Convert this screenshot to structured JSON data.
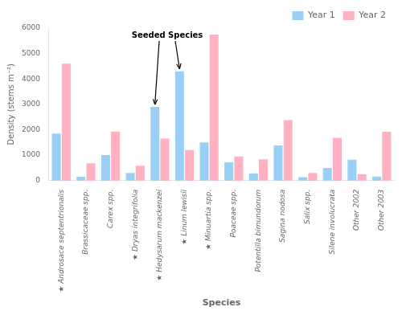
{
  "chart_data": {
    "type": "bar",
    "categories": [
      "★ Androsace septentrionalis",
      "Brassicaceae spp.",
      "Carex spp.",
      "★ Dryas integrifolia",
      "★ Hedysarum mackenzei",
      "★ Linum lewisii",
      "★ Minuartia spp.",
      "Poaceae spp.",
      "Potentilla bimundorum",
      "Sagina nodosa",
      "Salix spp.",
      "Silene involucrata",
      "Other 2002",
      "Other 2003"
    ],
    "series": [
      {
        "name": "Year 1",
        "values": [
          1850,
          150,
          1000,
          300,
          2900,
          4300,
          1500,
          720,
          280,
          1380,
          130,
          500,
          820,
          160
        ]
      },
      {
        "name": "Year 2",
        "values": [
          4600,
          680,
          1930,
          580,
          1650,
          1200,
          5750,
          950,
          840,
          2380,
          300,
          1680,
          250,
          1920
        ]
      }
    ],
    "xlabel": "Species",
    "ylabel": "Density (stems m⁻²)",
    "ylim": [
      0,
      6000
    ],
    "yticks": [
      0,
      1000,
      2000,
      3000,
      4000,
      5000,
      6000
    ],
    "grid": false,
    "legend": "upper right",
    "annotations": [
      {
        "text": "Seeded Species",
        "arrows": [
          {
            "category": "★ Hedysarum mackenzei",
            "series": "Year 1"
          },
          {
            "category": "★ Linum lewisii",
            "series": "Year 1"
          }
        ]
      }
    ]
  }
}
